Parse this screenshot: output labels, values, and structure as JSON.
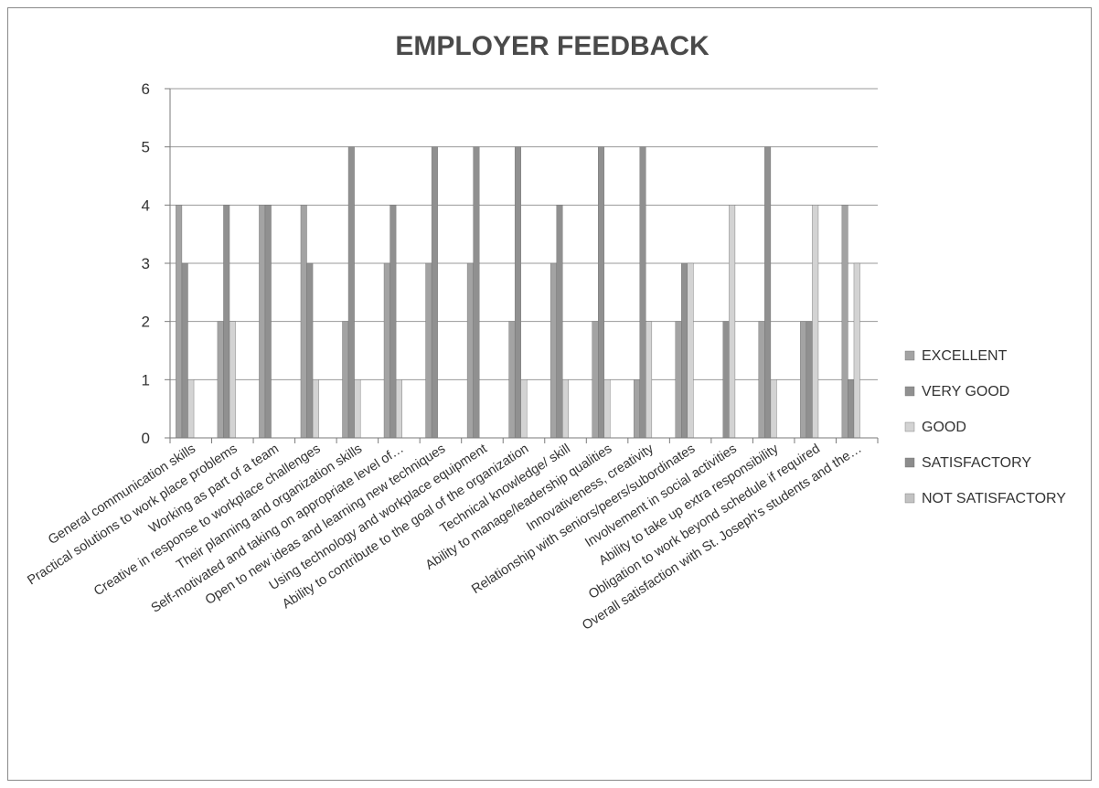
{
  "chart_data": {
    "type": "bar",
    "title": "EMPLOYER FEEDBACK",
    "xlabel": "",
    "ylabel": "",
    "ylim": [
      0,
      6
    ],
    "yticks": [
      "0",
      "1",
      "2",
      "3",
      "4",
      "5",
      "6"
    ],
    "grid": true,
    "legend_position": "right",
    "categories": [
      "General communication skills",
      "Practical solutions to work place problems",
      "Working as part of a team",
      "Creative in response to workplace challenges",
      "Their planning and organization skills",
      "Self-motivated and taking on appropriate level of…",
      "Open to new ideas and learning new techniques",
      "Using technology and workplace equipment",
      "Ability to contribute to the goal of the organization",
      "Technical knowledge/ skill",
      "Ability to manage/leadership qualities",
      "Innovativeness, creativity",
      "Relationship with seniors/peers/subordinates",
      "Involvement in social activities",
      "Ability to take up extra responsibility",
      "Obligation to work beyond schedule if required",
      "Overall satisfaction with St. Joseph's students and the…"
    ],
    "series": [
      {
        "name": "EXCELLENT",
        "color": "#a3a3a3",
        "values": [
          4,
          2,
          4,
          4,
          2,
          3,
          3,
          3,
          2,
          3,
          2,
          1,
          2,
          0,
          2,
          2,
          4
        ]
      },
      {
        "name": "VERY GOOD",
        "color": "#909090",
        "values": [
          3,
          4,
          4,
          3,
          5,
          4,
          5,
          5,
          5,
          4,
          5,
          5,
          3,
          2,
          5,
          2,
          1
        ]
      },
      {
        "name": "GOOD",
        "color": "#d3d3d3",
        "values": [
          1,
          2,
          0,
          1,
          1,
          1,
          0,
          0,
          1,
          1,
          1,
          2,
          3,
          4,
          1,
          4,
          3
        ]
      },
      {
        "name": "SATISFACTORY",
        "color": "#8c8c8c",
        "values": [
          0,
          0,
          0,
          0,
          0,
          0,
          0,
          0,
          0,
          0,
          0,
          0,
          0,
          0,
          0,
          0,
          0
        ]
      },
      {
        "name": "NOT SATISFACTORY",
        "color": "#c2c2c2",
        "values": [
          0,
          0,
          0,
          0,
          0,
          0,
          0,
          0,
          0,
          0,
          0,
          0,
          0,
          0,
          0,
          0,
          0
        ]
      }
    ]
  }
}
